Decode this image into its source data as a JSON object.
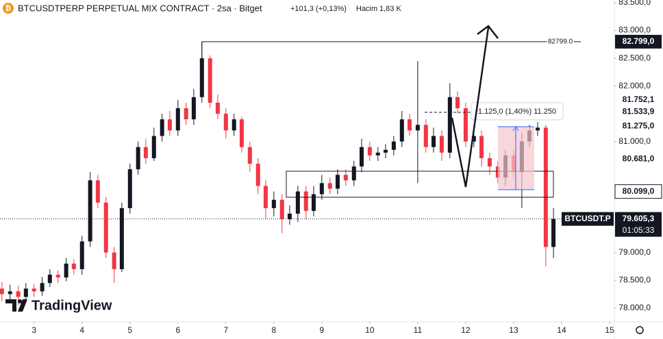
{
  "chart_data": {
    "type": "candlestick",
    "title": "BTCUSDTPERP PERPETUAL MIX CONTRACT · 2sa · Bitget",
    "change": "+101,3 (+0,13%)",
    "volume_label": "Hacim",
    "volume": "1,83 K",
    "symbol_tag": "BTCUSDT.P",
    "watermark": "TradingView",
    "up_color": "#131722",
    "down_color": "#f23645",
    "x": [
      2.33,
      2.5,
      2.67,
      2.83,
      3.0,
      3.17,
      3.33,
      3.5,
      3.67,
      3.83,
      4.0,
      4.17,
      4.33,
      4.5,
      4.67,
      4.83,
      5.0,
      5.17,
      5.33,
      5.5,
      5.67,
      5.83,
      6.0,
      6.17,
      6.33,
      6.5,
      6.67,
      6.83,
      7.0,
      7.17,
      7.33,
      7.5,
      7.67,
      7.83,
      8.0,
      8.17,
      8.33,
      8.5,
      8.67,
      8.83,
      9.0,
      9.17,
      9.33,
      9.5,
      9.67,
      9.83,
      10.0,
      10.17,
      10.33,
      10.5,
      10.67,
      10.83,
      11.0,
      11.17,
      11.33,
      11.5,
      11.67,
      11.83,
      12.0,
      12.17,
      12.33,
      12.5,
      12.67,
      12.83,
      13.0,
      13.17,
      13.33,
      13.5,
      13.67,
      13.83
    ],
    "open": [
      78350,
      78250,
      78300,
      78200,
      78350,
      78300,
      78450,
      78600,
      78550,
      78800,
      78700,
      79200,
      80300,
      79900,
      79000,
      78700,
      79800,
      80500,
      80900,
      80700,
      81100,
      81400,
      81200,
      81600,
      81400,
      81800,
      82500,
      81700,
      81500,
      81200,
      81400,
      80900,
      80600,
      80200,
      79800,
      79950,
      79600,
      79700,
      80100,
      79750,
      80050,
      80250,
      80150,
      80400,
      80300,
      80550,
      80900,
      80750,
      80800,
      80850,
      81000,
      81400,
      81200,
      81300,
      80900,
      81100,
      80800,
      81800,
      81600,
      81000,
      81100,
      80700,
      80550,
      80350,
      80750,
      80450,
      81000,
      81200,
      81250,
      79100
    ],
    "high": [
      78470,
      78420,
      78400,
      78450,
      78430,
      78560,
      78700,
      78680,
      78900,
      78880,
      79300,
      80450,
      80400,
      80000,
      79100,
      79900,
      80600,
      81000,
      81050,
      81250,
      81500,
      81550,
      81750,
      81700,
      81950,
      82799,
      82550,
      81850,
      81600,
      81500,
      81450,
      81000,
      80700,
      80300,
      80100,
      80050,
      79850,
      80200,
      80200,
      80200,
      80400,
      80350,
      80500,
      80500,
      80650,
      81050,
      81000,
      80900,
      80950,
      81100,
      81550,
      81500,
      82450,
      81400,
      81250,
      81200,
      82050,
      81900,
      81700,
      81300,
      81200,
      80800,
      80650,
      80850,
      80850,
      81150,
      81300,
      81350,
      81300,
      79800
    ],
    "low": [
      78120,
      78150,
      78050,
      78100,
      78200,
      78220,
      78380,
      78450,
      78480,
      78600,
      78600,
      79100,
      79800,
      78900,
      78450,
      78650,
      79700,
      80400,
      80600,
      80650,
      81000,
      81100,
      81100,
      81300,
      81300,
      81700,
      81600,
      81400,
      81050,
      81100,
      80800,
      80450,
      80050,
      79600,
      79650,
      79350,
      79500,
      79550,
      79600,
      79650,
      79950,
      80050,
      80050,
      80200,
      80200,
      80450,
      80650,
      80650,
      80700,
      80750,
      80900,
      81100,
      80250,
      80800,
      80800,
      80650,
      80700,
      81500,
      80900,
      80900,
      80550,
      80400,
      80250,
      80200,
      80350,
      79800,
      80900,
      81100,
      78750,
      78900
    ],
    "close": [
      78250,
      78300,
      78200,
      78350,
      78300,
      78450,
      78600,
      78550,
      78800,
      78700,
      79200,
      80300,
      79900,
      79000,
      78700,
      79800,
      80500,
      80900,
      80700,
      81100,
      81400,
      81200,
      81600,
      81400,
      81800,
      82500,
      81700,
      81500,
      81200,
      81400,
      80900,
      80600,
      80200,
      79800,
      79950,
      79600,
      79700,
      80100,
      79750,
      80050,
      80250,
      80150,
      80400,
      80300,
      80550,
      80900,
      80750,
      80800,
      80850,
      81000,
      81400,
      81200,
      81300,
      80900,
      81100,
      80800,
      81800,
      81600,
      81000,
      81100,
      80700,
      80550,
      80350,
      80750,
      80450,
      81000,
      81200,
      81250,
      79100,
      79605.3
    ],
    "xlim": [
      2.29,
      15.1
    ],
    "xticks": [
      3,
      4,
      5,
      6,
      7,
      8,
      9,
      10,
      11,
      12,
      13,
      14,
      15
    ],
    "ylim": [
      77750,
      83550
    ],
    "yticks": [
      {
        "value": 83500,
        "label": "83.500,0"
      },
      {
        "value": 83000,
        "label": "83.000,0"
      },
      {
        "value": 82500,
        "label": "82.500,0"
      },
      {
        "value": 82000,
        "label": "82.000,0"
      },
      {
        "value": 81000,
        "label": "81.000,0"
      },
      {
        "value": 79000,
        "label": "79.000,0"
      },
      {
        "value": 78500,
        "label": "78.500,0"
      },
      {
        "value": 78000,
        "label": "78.000,0"
      }
    ],
    "price_labels": [
      {
        "value": 82799,
        "label": "82.799,0",
        "color": "#131722"
      },
      {
        "value": 81752.1,
        "label": "81.752,1",
        "color": "#ffffff"
      },
      {
        "value": 81533.9,
        "label": "81.533,9",
        "color": "#ffffff"
      },
      {
        "value": 81275,
        "label": "81.275,0",
        "color": "#ffffff"
      },
      {
        "value": 80681,
        "label": "80.681,0",
        "color": "#ffffff"
      },
      {
        "value": 80099,
        "label": "80.099,0",
        "color": "#ffffff"
      },
      {
        "value": 79605.3,
        "label": "79.605,3",
        "color": "#131722",
        "sublabel": "01:05:33"
      }
    ],
    "level_line": {
      "value": 82799,
      "label": "82799.0"
    },
    "measure_label": "1.125,0 (1,40%) 11.250"
  }
}
